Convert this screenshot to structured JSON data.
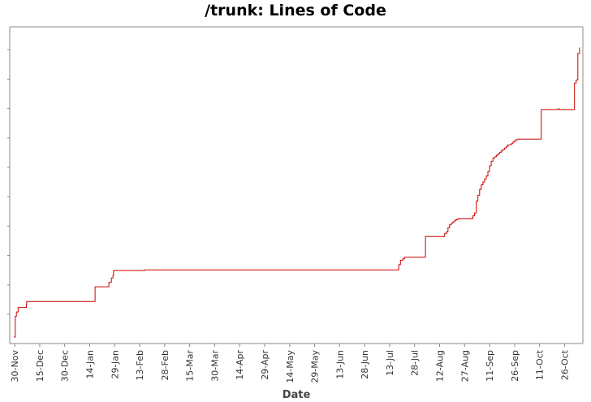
{
  "chart_data": {
    "type": "line",
    "title": "/trunk: Lines of Code",
    "xlabel": "Date",
    "ylabel": "",
    "x_ticks": [
      "30-Nov",
      "15-Dec",
      "30-Dec",
      "14-Jan",
      "29-Jan",
      "13-Feb",
      "28-Feb",
      "15-Mar",
      "30-Mar",
      "14-Apr",
      "29-Apr",
      "14-May",
      "29-May",
      "13-Jun",
      "28-Jun",
      "13-Jul",
      "28-Jul",
      "12-Aug",
      "27-Aug",
      "11-Sep",
      "26-Sep",
      "11-Oct",
      "26-Oct"
    ],
    "x_range": [
      -3,
      341
    ],
    "y_range": [
      -22,
      1050
    ],
    "grid": false,
    "legend": "none",
    "series_color": "#cc0000",
    "series": [
      {
        "x": [
          -0.5,
          0.3,
          1,
          2,
          7,
          7.2,
          48,
          48.2,
          55,
          56.5,
          58,
          59,
          59.3,
          77,
          78,
          230,
          230.5,
          231.5,
          233,
          234,
          246,
          246.5,
          257,
          258,
          259,
          260,
          261,
          262,
          263,
          264,
          265,
          266,
          274,
          275,
          276,
          277,
          278,
          279,
          280,
          281,
          282,
          283,
          284,
          285,
          286,
          287,
          288,
          289,
          290,
          291,
          292,
          293,
          294,
          295,
          296,
          297,
          298,
          299,
          300,
          301,
          302,
          303,
          304,
          305,
          306,
          307,
          308,
          309,
          310,
          314,
          315,
          316,
          325,
          326,
          327,
          328,
          329,
          330,
          331,
          332,
          333,
          334,
          335,
          336,
          337,
          338,
          339
        ],
        "y": [
          0,
          70,
          85,
          100,
          110,
          120,
          120,
          170,
          170,
          185,
          200,
          210,
          225,
          225,
          227,
          227,
          245,
          260,
          265,
          270,
          270,
          340,
          340,
          350,
          355,
          370,
          380,
          385,
          390,
          395,
          398,
          400,
          400,
          410,
          420,
          460,
          480,
          500,
          515,
          525,
          535,
          545,
          560,
          580,
          595,
          605,
          610,
          615,
          620,
          625,
          630,
          635,
          640,
          645,
          650,
          650,
          655,
          660,
          665,
          668,
          670,
          670,
          670,
          670,
          670,
          670,
          670,
          670,
          670,
          670,
          670,
          770,
          770,
          772,
          770,
          770,
          770,
          770,
          770,
          770,
          770,
          770,
          770,
          860,
          870,
          960,
          980
        ]
      }
    ]
  }
}
